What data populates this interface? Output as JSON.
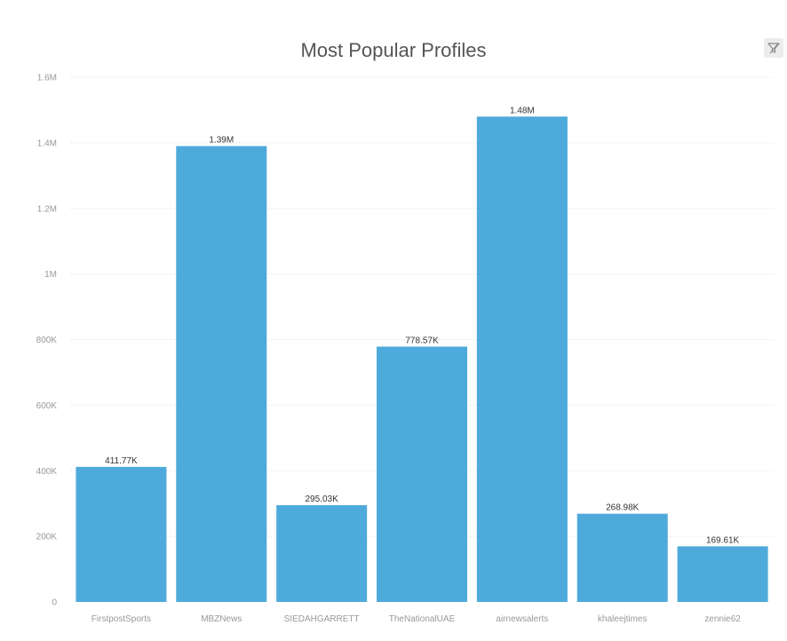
{
  "filter_icon": "filter-icon",
  "chart_data": {
    "type": "bar",
    "title": "Most Popular Profiles",
    "xlabel": "",
    "ylabel": "",
    "categories": [
      "FirstpostSports",
      "MBZNews",
      "SIEDAHGARRETT",
      "TheNationalUAE",
      "airnewsalerts",
      "khaleejtimes",
      "zennie62"
    ],
    "values": [
      411770,
      1390000,
      295030,
      778570,
      1480000,
      268980,
      169610
    ],
    "data_labels": [
      "411.77K",
      "1.39M",
      "295.03K",
      "778.57K",
      "1.48M",
      "268.98K",
      "169.61K"
    ],
    "ylim": [
      0,
      1600000
    ],
    "yticks": [
      0,
      200000,
      400000,
      600000,
      800000,
      1000000,
      1200000,
      1400000,
      1600000
    ],
    "ytick_labels": [
      "0",
      "200K",
      "400K",
      "600K",
      "800K",
      "1M",
      "1.2M",
      "1.4M",
      "1.6M"
    ],
    "bar_color": "#4eaadb",
    "grid": true,
    "legend": "none"
  }
}
